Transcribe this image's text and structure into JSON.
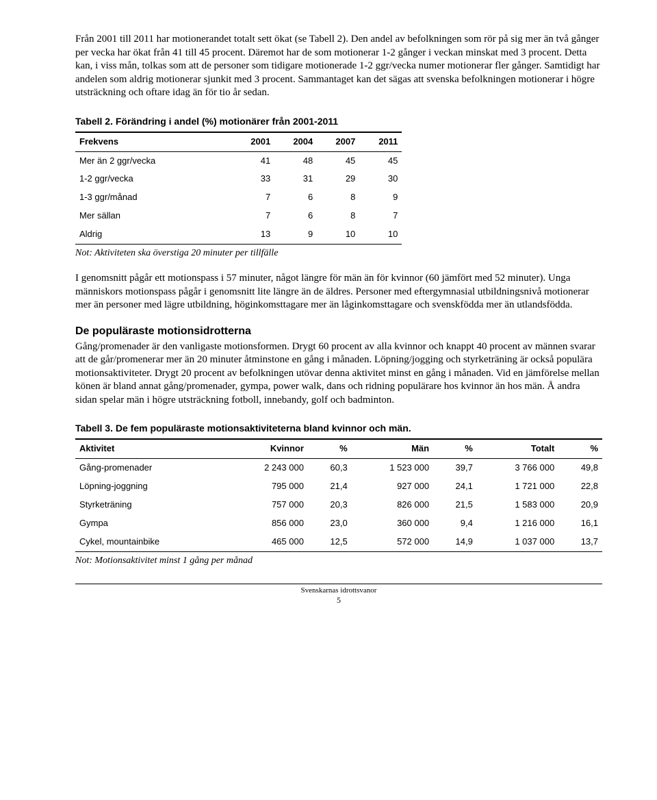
{
  "para1": "Från 2001 till 2011 har motionerandet totalt sett ökat (se Tabell 2). Den andel av befolkningen som rör på sig mer än två gånger per vecka har ökat från 41 till 45 procent. Däremot har de som motionerar 1-2 gånger i veckan minskat med 3 procent. Detta kan, i viss mån, tolkas som att de personer som tidigare motionerade 1-2 ggr/vecka numer motionerar fler gånger. Samtidigt har andelen som aldrig motionerar sjunkit med 3 procent. Sammantaget kan det sägas att svenska befolkningen motionerar i högre utsträckning och oftare idag än för tio år sedan.",
  "table2": {
    "title": "Tabell 2. Förändring i andel (%) motionärer från 2001-2011",
    "columns": [
      "Frekvens",
      "2001",
      "2004",
      "2007",
      "2011"
    ],
    "rows": [
      [
        "Mer än 2 ggr/vecka",
        "41",
        "48",
        "45",
        "45"
      ],
      [
        "1-2 ggr/vecka",
        "33",
        "31",
        "29",
        "30"
      ],
      [
        "1-3 ggr/månad",
        "7",
        "6",
        "8",
        "9"
      ],
      [
        "Mer sällan",
        "7",
        "6",
        "8",
        "7"
      ],
      [
        "Aldrig",
        "13",
        "9",
        "10",
        "10"
      ]
    ],
    "note": "Not: Aktiviteten ska överstiga 20 minuter per tillfälle"
  },
  "para2": "I genomsnitt pågår ett motionspass i 57 minuter, något längre för män än för kvinnor (60 jämfört med 52 minuter). Unga människors motionspass pågår i genomsnitt lite längre än de äldres. Personer med eftergymnasial utbildningsnivå motionerar mer än personer med lägre utbildning, höginkomsttagare mer än låginkomsttagare och svenskfödda mer än utlandsfödda.",
  "section_title": "De populäraste motionsidrotterna",
  "para3": "Gång/promenader är den vanligaste motionsformen. Drygt 60 procent av alla kvinnor och knappt 40 procent av männen svarar att de går/promenerar mer än 20 minuter åtminstone en gång i månaden. Löpning/jogging och styrketräning är också populära motionsaktiviteter. Drygt 20 procent av befolkningen utövar denna aktivitet minst en gång i månaden. Vid en jämförelse mellan könen är bland annat gång/promenader, gympa, power walk, dans och ridning populärare hos kvinnor än hos män. Å andra sidan spelar män i högre utsträckning fotboll, innebandy, golf och badminton.",
  "table3": {
    "title": "Tabell 3. De fem populäraste motionsaktiviteterna bland kvinnor och män.",
    "columns": [
      "Aktivitet",
      "Kvinnor",
      "%",
      "Män",
      "%",
      "Totalt",
      "%"
    ],
    "rows": [
      [
        "Gång-promenader",
        "2 243 000",
        "60,3",
        "1 523 000",
        "39,7",
        "3 766 000",
        "49,8"
      ],
      [
        "Löpning-joggning",
        "795 000",
        "21,4",
        "927 000",
        "24,1",
        "1 721 000",
        "22,8"
      ],
      [
        "Styrketräning",
        "757 000",
        "20,3",
        "826 000",
        "21,5",
        "1 583 000",
        "20,9"
      ],
      [
        "Gympa",
        "856 000",
        "23,0",
        "360 000",
        "9,4",
        "1 216 000",
        "16,1"
      ],
      [
        "Cykel, mountainbike",
        "465 000",
        "12,5",
        "572 000",
        "14,9",
        "1 037 000",
        "13,7"
      ]
    ],
    "note": "Not: Motionsaktivitet minst 1 gång per månad"
  },
  "footer_text": "Svenskarnas idrottsvanor",
  "footer_page": "5"
}
